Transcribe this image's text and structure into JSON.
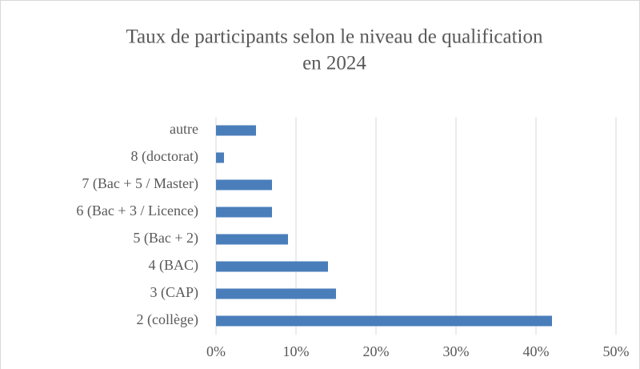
{
  "chart_data": {
    "type": "bar",
    "orientation": "horizontal",
    "title": [
      "Taux de participants selon le niveau de qualification",
      "en 2024"
    ],
    "categories": [
      "autre",
      "8 (doctorat)",
      "7 (Bac + 5 / Master)",
      "6 (Bac + 3 / Licence)",
      "5 (Bac + 2)",
      "4 (BAC)",
      "3 (CAP)",
      "2 (collège)"
    ],
    "values": [
      5,
      1,
      7,
      7,
      9,
      14,
      15,
      42
    ],
    "color": "#4a7ebb",
    "xlim": [
      0,
      50
    ],
    "xticks": [
      {
        "value": 0,
        "label": "0%"
      },
      {
        "value": 10,
        "label": "10%"
      },
      {
        "value": 20,
        "label": "20%"
      },
      {
        "value": 30,
        "label": "30%"
      },
      {
        "value": 40,
        "label": "40%"
      },
      {
        "value": 50,
        "label": "50%"
      }
    ],
    "grid": true
  }
}
